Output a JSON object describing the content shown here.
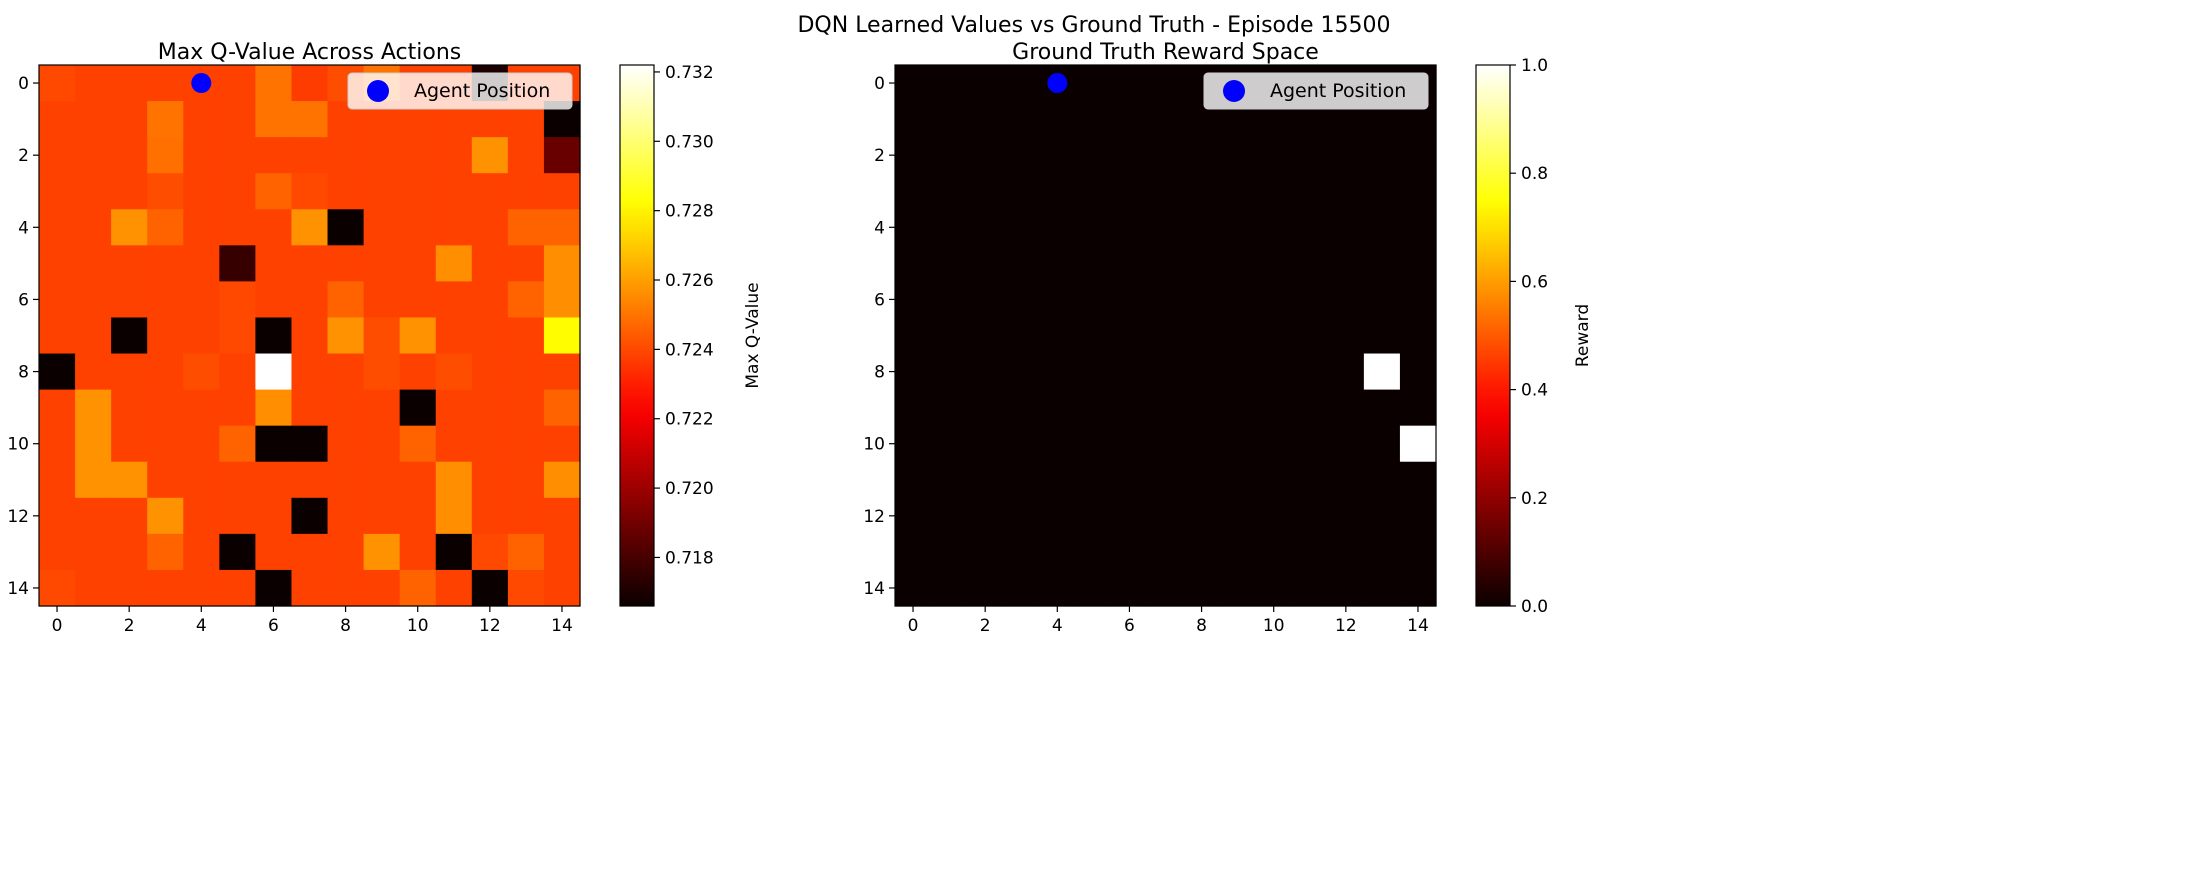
{
  "figure": {
    "suptitle": "DQN Learned Values vs Ground Truth - Episode 15500"
  },
  "colormap": {
    "name": "hot",
    "stops": [
      "#0b0000",
      "#ff0000",
      "#ffff00",
      "#ffffff"
    ]
  },
  "chart_data": [
    {
      "type": "heatmap",
      "title": "Max Q-Value Across Actions",
      "xlabel": "",
      "ylabel": "",
      "x_ticks": [
        "0",
        "2",
        "4",
        "6",
        "8",
        "10",
        "12",
        "14"
      ],
      "y_ticks": [
        "0",
        "2",
        "4",
        "6",
        "8",
        "10",
        "12",
        "14"
      ],
      "grid_size": 15,
      "grid": false,
      "colorbar": {
        "label": "Max Q-Value",
        "range": [
          0.7166,
          0.7322
        ],
        "ticks": [
          "0.718",
          "0.720",
          "0.722",
          "0.724",
          "0.726",
          "0.728",
          "0.730",
          "0.732"
        ]
      },
      "values": [
        [
          0.724,
          0.7238,
          0.7238,
          0.7238,
          0.7238,
          0.7238,
          0.725,
          0.7237,
          0.7241,
          0.725,
          0.7238,
          0.7238,
          0.717,
          0.7238,
          0.7238
        ],
        [
          0.7238,
          0.7238,
          0.7238,
          0.725,
          0.7238,
          0.7238,
          0.725,
          0.725,
          0.7238,
          0.7238,
          0.7238,
          0.7238,
          0.7238,
          0.7238,
          0.7166
        ],
        [
          0.7238,
          0.7238,
          0.7238,
          0.7249,
          0.7238,
          0.7238,
          0.7238,
          0.7238,
          0.7238,
          0.7238,
          0.7238,
          0.7238,
          0.7257,
          0.7238,
          0.7188
        ],
        [
          0.7238,
          0.7238,
          0.7238,
          0.7241,
          0.7238,
          0.7238,
          0.7246,
          0.724,
          0.7238,
          0.7238,
          0.7238,
          0.7238,
          0.7238,
          0.7238,
          0.7238
        ],
        [
          0.7238,
          0.7238,
          0.7257,
          0.7246,
          0.7238,
          0.7238,
          0.7238,
          0.7257,
          0.7166,
          0.7238,
          0.7238,
          0.7238,
          0.7238,
          0.7246,
          0.7246
        ],
        [
          0.7238,
          0.7238,
          0.7238,
          0.7238,
          0.7238,
          0.7176,
          0.7238,
          0.7238,
          0.7238,
          0.7238,
          0.7238,
          0.7256,
          0.7238,
          0.7238,
          0.7256
        ],
        [
          0.7238,
          0.7238,
          0.7238,
          0.7238,
          0.7238,
          0.724,
          0.7238,
          0.7238,
          0.7246,
          0.7238,
          0.7238,
          0.7238,
          0.7238,
          0.7246,
          0.7256
        ],
        [
          0.7238,
          0.7238,
          0.7166,
          0.7238,
          0.7238,
          0.724,
          0.7166,
          0.7238,
          0.7257,
          0.7241,
          0.7257,
          0.7238,
          0.7238,
          0.7238,
          0.7282
        ],
        [
          0.7166,
          0.7238,
          0.7238,
          0.7238,
          0.7241,
          0.7238,
          0.7322,
          0.7238,
          0.7238,
          0.7241,
          0.7238,
          0.7241,
          0.7238,
          0.7238,
          0.7238
        ],
        [
          0.7238,
          0.7257,
          0.7238,
          0.7238,
          0.7238,
          0.7238,
          0.7256,
          0.7238,
          0.7238,
          0.7238,
          0.7166,
          0.7238,
          0.7238,
          0.7238,
          0.7246
        ],
        [
          0.7238,
          0.7257,
          0.7238,
          0.7238,
          0.7238,
          0.7246,
          0.7166,
          0.7166,
          0.7238,
          0.7238,
          0.7246,
          0.7238,
          0.7238,
          0.7238,
          0.7238
        ],
        [
          0.7238,
          0.7257,
          0.7257,
          0.7238,
          0.7238,
          0.7238,
          0.7238,
          0.7238,
          0.7238,
          0.7238,
          0.7238,
          0.7256,
          0.7238,
          0.7238,
          0.7256
        ],
        [
          0.7238,
          0.7238,
          0.7238,
          0.7257,
          0.7238,
          0.7238,
          0.7238,
          0.7166,
          0.7238,
          0.7238,
          0.7238,
          0.7256,
          0.7238,
          0.7238,
          0.7238
        ],
        [
          0.7238,
          0.7238,
          0.7238,
          0.7246,
          0.7238,
          0.7166,
          0.7238,
          0.7238,
          0.7238,
          0.7257,
          0.7238,
          0.7166,
          0.724,
          0.7246,
          0.7238
        ],
        [
          0.724,
          0.7238,
          0.7238,
          0.7238,
          0.7238,
          0.7238,
          0.7166,
          0.7238,
          0.7238,
          0.7238,
          0.7246,
          0.7238,
          0.7166,
          0.724,
          0.7238
        ]
      ],
      "marker": {
        "label": "Agent Position",
        "row": 0,
        "col": 4,
        "color": "#0000ff"
      },
      "legend": "top-right"
    },
    {
      "type": "heatmap",
      "title": "Ground Truth Reward Space",
      "xlabel": "",
      "ylabel": "",
      "x_ticks": [
        "0",
        "2",
        "4",
        "6",
        "8",
        "10",
        "12",
        "14"
      ],
      "y_ticks": [
        "0",
        "2",
        "4",
        "6",
        "8",
        "10",
        "12",
        "14"
      ],
      "grid_size": 15,
      "grid": false,
      "colorbar": {
        "label": "Reward",
        "range": [
          0,
          1
        ],
        "ticks": [
          "0.0",
          "0.2",
          "0.4",
          "0.6",
          "0.8",
          "1.0"
        ]
      },
      "values": [
        [
          0,
          0,
          0,
          0,
          0,
          0,
          0,
          0,
          0,
          0,
          0,
          0,
          0,
          0,
          0
        ],
        [
          0,
          0,
          0,
          0,
          0,
          0,
          0,
          0,
          0,
          0,
          0,
          0,
          0,
          0,
          0
        ],
        [
          0,
          0,
          0,
          0,
          0,
          0,
          0,
          0,
          0,
          0,
          0,
          0,
          0,
          0,
          0
        ],
        [
          0,
          0,
          0,
          0,
          0,
          0,
          0,
          0,
          0,
          0,
          0,
          0,
          0,
          0,
          0
        ],
        [
          0,
          0,
          0,
          0,
          0,
          0,
          0,
          0,
          0,
          0,
          0,
          0,
          0,
          0,
          0
        ],
        [
          0,
          0,
          0,
          0,
          0,
          0,
          0,
          0,
          0,
          0,
          0,
          0,
          0,
          0,
          0
        ],
        [
          0,
          0,
          0,
          0,
          0,
          0,
          0,
          0,
          0,
          0,
          0,
          0,
          0,
          0,
          0
        ],
        [
          0,
          0,
          0,
          0,
          0,
          0,
          0,
          0,
          0,
          0,
          0,
          0,
          0,
          0,
          0
        ],
        [
          0,
          0,
          0,
          0,
          0,
          0,
          0,
          0,
          0,
          0,
          0,
          0,
          0,
          1,
          0
        ],
        [
          0,
          0,
          0,
          0,
          0,
          0,
          0,
          0,
          0,
          0,
          0,
          0,
          0,
          0,
          0
        ],
        [
          0,
          0,
          0,
          0,
          0,
          0,
          0,
          0,
          0,
          0,
          0,
          0,
          0,
          0,
          1
        ],
        [
          0,
          0,
          0,
          0,
          0,
          0,
          0,
          0,
          0,
          0,
          0,
          0,
          0,
          0,
          0
        ],
        [
          0,
          0,
          0,
          0,
          0,
          0,
          0,
          0,
          0,
          0,
          0,
          0,
          0,
          0,
          0
        ],
        [
          0,
          0,
          0,
          0,
          0,
          0,
          0,
          0,
          0,
          0,
          0,
          0,
          0,
          0,
          0
        ],
        [
          0,
          0,
          0,
          0,
          0,
          0,
          0,
          0,
          0,
          0,
          0,
          0,
          0,
          0,
          0
        ]
      ],
      "marker": {
        "label": "Agent Position",
        "row": 0,
        "col": 4,
        "color": "#0000ff"
      },
      "legend": "top-right"
    }
  ]
}
